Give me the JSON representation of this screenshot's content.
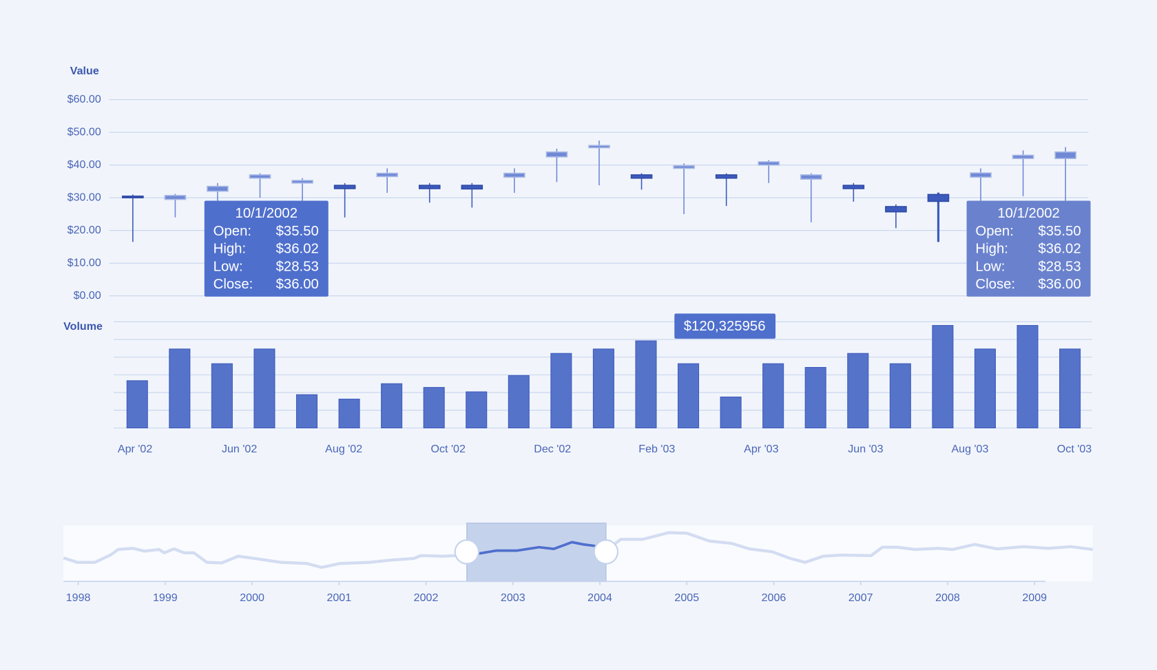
{
  "chart_data": [
    {
      "type": "candlestick",
      "axis_label": "Value",
      "open": [
        30.5,
        29.5,
        32,
        36,
        34.5,
        33.8,
        36.5,
        33.8,
        33.8,
        36.3,
        42.5,
        45.3,
        37,
        39,
        37,
        40,
        35.7,
        33.8,
        27.3,
        31,
        36.3,
        42,
        42
      ],
      "high": [
        31,
        31.2,
        34.5,
        37.5,
        36,
        34.5,
        39,
        34.5,
        34.5,
        39,
        45,
        47.5,
        37.5,
        40.5,
        37.5,
        41.5,
        37.5,
        34.5,
        28,
        31.6,
        39,
        44.5,
        45.5
      ],
      "low": [
        16.5,
        24,
        28,
        30,
        28,
        24,
        31.5,
        28.5,
        27,
        31.5,
        34.8,
        33.8,
        32.5,
        25,
        27.5,
        34.5,
        22.5,
        28.8,
        20.7,
        16.5,
        28,
        30.5,
        25
      ],
      "close": [
        30,
        30.7,
        33.5,
        37,
        35.3,
        32.8,
        37.5,
        32.8,
        32.7,
        37.5,
        44,
        46,
        36,
        39.8,
        36,
        41,
        37,
        32.8,
        25.7,
        28.9,
        37.6,
        43,
        44
      ],
      "up_color": "#7089d6",
      "down_color": "#3d5bbd",
      "ylim": [
        0,
        60
      ],
      "yticks": [
        {
          "value": 0,
          "label": "$0.00"
        },
        {
          "value": 10,
          "label": "$10.00"
        },
        {
          "value": 20,
          "label": "$20.00"
        },
        {
          "value": 30,
          "label": "$30.00"
        },
        {
          "value": 40,
          "label": "$40.00"
        },
        {
          "value": 50,
          "label": "$50.00"
        },
        {
          "value": 60,
          "label": "$60.00"
        }
      ],
      "grid": true,
      "tooltips": [
        {
          "title": "10/1/2002",
          "rows": [
            [
              "Open:",
              "$35.50"
            ],
            [
              "High:",
              "$36.02"
            ],
            [
              "Low:",
              "$28.53"
            ],
            [
              "Close:",
              "$36.00"
            ]
          ],
          "color": "#4f6fcc"
        },
        {
          "title": "10/1/2002",
          "rows": [
            [
              "Open:",
              "$35.50"
            ],
            [
              "High:",
              "$36.02"
            ],
            [
              "Low:",
              "$28.53"
            ],
            [
              "Close:",
              "$36.00"
            ]
          ],
          "color": "#6a82cd"
        }
      ]
    },
    {
      "type": "bar",
      "axis_label": "Volume",
      "values": [
        2.67,
        4.46,
        3.63,
        4.46,
        1.88,
        1.63,
        2.5,
        2.29,
        2.04,
        2.96,
        4.21,
        4.46,
        4.92,
        3.63,
        1.75,
        3.63,
        3.42,
        4.21,
        3.63,
        5.79,
        4.46,
        5.79,
        4.46
      ],
      "color": "#5573c9",
      "ylim": [
        0,
        6
      ],
      "yticks": [
        0,
        1,
        2,
        3,
        4,
        5,
        6
      ],
      "grid": true,
      "x_labels": [
        "Apr '02",
        "Jun '02",
        "Aug '02",
        "Oct '02",
        "Dec '02",
        "Feb '03",
        "Apr '03",
        "Jun '03",
        "Aug '03",
        "Oct '03"
      ],
      "tooltip": "$120,325956"
    },
    {
      "type": "line",
      "x": [
        1997.83,
        1997.99,
        1998.19,
        1998.37,
        1998.46,
        1998.63,
        1998.76,
        1998.93,
        1998.99,
        1999.1,
        1999.22,
        1999.33,
        1999.48,
        1999.65,
        1999.84,
        2000.03,
        2000.33,
        2000.63,
        2000.8,
        2001.01,
        2001.35,
        2001.6,
        2001.86,
        2001.94,
        2002.2,
        2002.47,
        2002.62,
        2002.81,
        2003.05,
        2003.3,
        2003.47,
        2003.68,
        2003.81,
        2003.96,
        2004.07,
        2004.24,
        2004.49,
        2004.79,
        2005.0,
        2005.26,
        2005.51,
        2005.72,
        2005.98,
        2006.19,
        2006.36,
        2006.57,
        2006.78,
        2007.12,
        2007.25,
        2007.42,
        2007.63,
        2007.89,
        2008.06,
        2008.31,
        2008.57,
        2008.87,
        2009.16,
        2009.42,
        2009.67
      ],
      "values": [
        4.2,
        3.4,
        3.4,
        4.7,
        5.7,
        5.9,
        5.4,
        5.7,
        5.1,
        5.8,
        5.1,
        5.1,
        3.4,
        3.3,
        4.5,
        4.1,
        3.4,
        3.2,
        2.5,
        3.2,
        3.4,
        3.8,
        4.1,
        4.6,
        4.5,
        4.7,
        5.0,
        5.5,
        5.5,
        6.1,
        5.8,
        7.0,
        6.6,
        6.3,
        5.5,
        7.5,
        7.5,
        8.7,
        8.6,
        7.2,
        6.8,
        5.8,
        5.3,
        4.1,
        3.4,
        4.5,
        4.7,
        4.6,
        6.1,
        6.1,
        5.7,
        5.9,
        5.7,
        6.6,
        5.8,
        6.2,
        5.9,
        6.2,
        5.7
      ],
      "color": "#d3dcf1",
      "selected_color": "#4f6fcc",
      "xlim": [
        1997.83,
        2009.67
      ],
      "xticks": [
        1998,
        1999,
        2000,
        2001,
        2002,
        2003,
        2004,
        2005,
        2006,
        2007,
        2008,
        2009
      ],
      "ylim": [
        0,
        10
      ],
      "selection": [
        2002.47,
        2004.07
      ]
    }
  ]
}
